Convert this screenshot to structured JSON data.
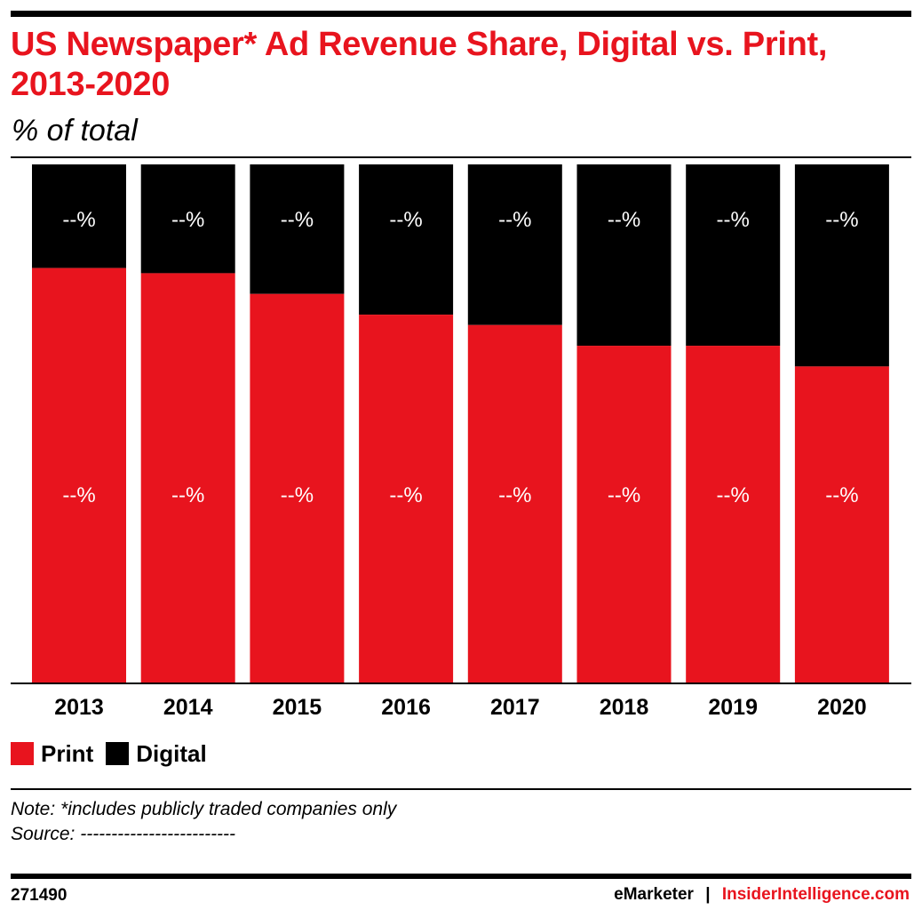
{
  "header": {
    "title": "US Newspaper* Ad Revenue Share, Digital vs. Print, 2013-2020",
    "subtitle": "% of total"
  },
  "colors": {
    "print": "#e8141e",
    "digital": "#000000",
    "title": "#e8141e",
    "brand": "#e8141e"
  },
  "chart_data": {
    "type": "bar",
    "stacked": true,
    "categories": [
      "2013",
      "2014",
      "2015",
      "2016",
      "2017",
      "2018",
      "2019",
      "2020"
    ],
    "series": [
      {
        "name": "Print",
        "values": [
          80,
          79,
          75,
          71,
          69,
          65,
          65,
          61
        ],
        "labels": [
          "--%",
          "--%",
          "--%",
          "--%",
          "--%",
          "--%",
          "--%",
          "--%"
        ]
      },
      {
        "name": "Digital",
        "values": [
          20,
          21,
          25,
          29,
          31,
          35,
          35,
          39
        ],
        "labels": [
          "--%",
          "--%",
          "--%",
          "--%",
          "--%",
          "--%",
          "--%",
          "--%"
        ]
      }
    ],
    "ylim": [
      0,
      100
    ],
    "grid": false,
    "legend_position": "bottom-left"
  },
  "legend": {
    "print": "Print",
    "digital": "Digital"
  },
  "footer": {
    "note": "Note: *includes publicly traded companies only",
    "source": "Source: -------------------------",
    "chart_id": "271490",
    "brand_emarketer": "eMarketer",
    "brand_separator": "|",
    "brand_insider": "InsiderIntelligence.com"
  }
}
